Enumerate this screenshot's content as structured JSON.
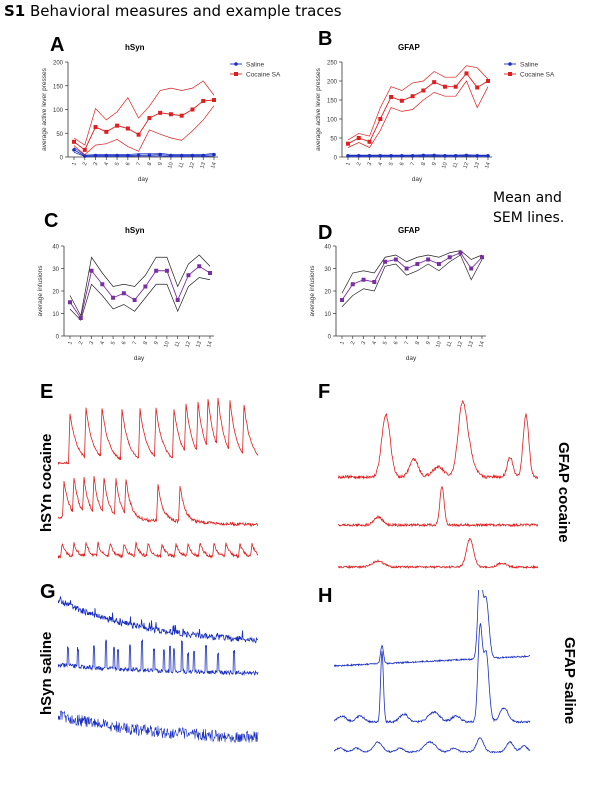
{
  "page": {
    "title_num": "S1",
    "title_text": " Behavioral measures and example traces",
    "note_line1": "Mean and",
    "note_line2": "SEM lines.",
    "colors": {
      "red": "#dd1f1f",
      "blue": "#1a2fbf",
      "purple": "#7a2fa0",
      "black": "#222222"
    }
  },
  "panels": {
    "A": {
      "letter": "A",
      "title": "hSyn"
    },
    "B": {
      "letter": "B",
      "title": "GFAP"
    },
    "C": {
      "letter": "C",
      "title": "hSyn"
    },
    "D": {
      "letter": "D",
      "title": "GFAP"
    },
    "E": {
      "letter": "E"
    },
    "F": {
      "letter": "F"
    },
    "G": {
      "letter": "G"
    },
    "H": {
      "letter": "H"
    }
  },
  "labels": {
    "hsyn_cocaine": "hSYn cocaine",
    "gfap_cocaine": "GFAP cocaine",
    "hsyn_saline": "hSyn saline",
    "gfap_saline": "GFAP saline"
  },
  "chart_data": [
    {
      "id": "A",
      "type": "line",
      "title": "hSyn",
      "xlabel": "day",
      "ylabel": "average active lever presses",
      "x": [
        1,
        2,
        3,
        4,
        5,
        6,
        7,
        8,
        9,
        10,
        11,
        12,
        13,
        14
      ],
      "ylim": [
        0,
        200
      ],
      "yticks": [
        0,
        50,
        100,
        150,
        200
      ],
      "legend_position": "top-right",
      "series": [
        {
          "name": "Saline",
          "color": "#1a2fbf",
          "marker": "circle",
          "values": [
            15,
            2,
            3,
            3,
            3,
            3,
            4,
            4,
            5,
            3,
            3,
            3,
            3,
            5
          ],
          "upper": [
            20,
            4,
            5,
            5,
            5,
            5,
            7,
            7,
            8,
            5,
            5,
            5,
            5,
            8
          ],
          "lower": [
            10,
            1,
            1,
            1,
            1,
            1,
            2,
            2,
            2,
            1,
            1,
            1,
            1,
            2
          ]
        },
        {
          "name": "Cocaine SA",
          "color": "#dd1f1f",
          "marker": "square",
          "values": [
            32,
            15,
            63,
            53,
            66,
            60,
            47,
            82,
            93,
            90,
            87,
            100,
            118,
            120
          ],
          "upper": [
            40,
            25,
            102,
            78,
            95,
            125,
            82,
            107,
            140,
            145,
            140,
            145,
            160,
            130
          ],
          "lower": [
            24,
            5,
            25,
            28,
            37,
            22,
            12,
            57,
            48,
            40,
            35,
            55,
            78,
            108
          ]
        }
      ]
    },
    {
      "id": "B",
      "type": "line",
      "title": "GFAP",
      "xlabel": "day",
      "ylabel": "average active lever presses",
      "x": [
        1,
        2,
        3,
        4,
        5,
        6,
        7,
        8,
        9,
        10,
        11,
        12,
        13,
        14
      ],
      "ylim": [
        0,
        250
      ],
      "yticks": [
        0,
        50,
        100,
        150,
        200,
        250
      ],
      "legend_position": "top-right",
      "series": [
        {
          "name": "Saline",
          "color": "#1a2fbf",
          "marker": "circle",
          "values": [
            3,
            3,
            3,
            3,
            3,
            3,
            3,
            4,
            4,
            3,
            3,
            4,
            3,
            3
          ],
          "upper": [
            5,
            5,
            5,
            5,
            5,
            5,
            5,
            6,
            6,
            5,
            5,
            6,
            5,
            5
          ],
          "lower": [
            1,
            1,
            1,
            1,
            1,
            1,
            1,
            2,
            2,
            1,
            1,
            2,
            1,
            1
          ]
        },
        {
          "name": "Cocaine SA",
          "color": "#dd1f1f",
          "marker": "square",
          "values": [
            35,
            50,
            40,
            100,
            158,
            148,
            160,
            175,
            197,
            185,
            185,
            220,
            183,
            200
          ],
          "upper": [
            45,
            62,
            55,
            130,
            185,
            175,
            195,
            200,
            225,
            210,
            210,
            240,
            235,
            205
          ],
          "lower": [
            25,
            38,
            25,
            70,
            130,
            120,
            125,
            150,
            170,
            160,
            160,
            200,
            130,
            185
          ]
        }
      ]
    },
    {
      "id": "C",
      "type": "line",
      "title": "hSyn",
      "xlabel": "day",
      "ylabel": "average infusions",
      "x": [
        1,
        2,
        3,
        4,
        5,
        6,
        7,
        8,
        9,
        10,
        11,
        12,
        13,
        14
      ],
      "ylim": [
        0,
        40
      ],
      "yticks": [
        0,
        10,
        20,
        30,
        40
      ],
      "series": [
        {
          "name": "",
          "color": "#7a2fa0",
          "marker": "square",
          "values": [
            15,
            8,
            29,
            23,
            17,
            19,
            16,
            22,
            29,
            29,
            16,
            27,
            31,
            28
          ],
          "upper": [
            18,
            9,
            35,
            28,
            22,
            23,
            22,
            27,
            35,
            35,
            22,
            32,
            36,
            31
          ],
          "lower": [
            12,
            7,
            23,
            18,
            12,
            14,
            11,
            17,
            23,
            23,
            11,
            22,
            26,
            25
          ]
        }
      ]
    },
    {
      "id": "D",
      "type": "line",
      "title": "GFAP",
      "xlabel": "day",
      "ylabel": "average infusions",
      "x": [
        1,
        2,
        3,
        4,
        5,
        6,
        7,
        8,
        9,
        10,
        11,
        12,
        13,
        14
      ],
      "ylim": [
        0,
        40
      ],
      "yticks": [
        0,
        10,
        20,
        30,
        40
      ],
      "series": [
        {
          "name": "",
          "color": "#7a2fa0",
          "marker": "square",
          "values": [
            16,
            23,
            25,
            24,
            33,
            34,
            30,
            32,
            34,
            32,
            35,
            37,
            30,
            35
          ],
          "upper": [
            19,
            28,
            29,
            28,
            35,
            36,
            33,
            35,
            36,
            35,
            37,
            38,
            34,
            36
          ],
          "lower": [
            13,
            18,
            21,
            20,
            31,
            32,
            27,
            29,
            32,
            29,
            33,
            36,
            25,
            34
          ]
        }
      ]
    }
  ]
}
